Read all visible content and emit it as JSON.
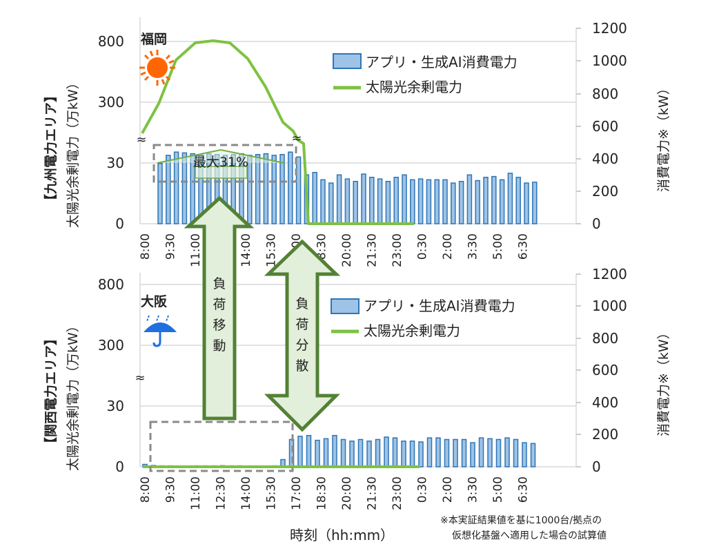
{
  "chart_data": [
    {
      "type": "bar+line",
      "title": "福岡",
      "region_label": "【九州電力エリア】",
      "ylabel_left": "太陽光余剰電力（万kW）",
      "ylabel_right": "消費電力※（kW）",
      "xlabel": "",
      "left_ticks": [
        "800",
        "300",
        "30",
        "0"
      ],
      "right_ticks": [
        "1200",
        "1000",
        "800",
        "600",
        "400",
        "200",
        "0"
      ],
      "x_tick_labels": [
        "8:00",
        "9:30",
        "11:00",
        "12:30",
        "14:00",
        "15:30",
        "17:00",
        "18:30",
        "20:00",
        "21:30",
        "23:00",
        "0:30",
        "2:00",
        "3:30",
        "5:00",
        "6:30"
      ],
      "legend": [
        "アプリ・生成AI消費電力",
        "太陽光余剰電力"
      ],
      "annotation": "最大31%",
      "weather": "sun",
      "series": [
        {
          "name": "アプリ・生成AI消費電力",
          "axis": "right",
          "type": "bar",
          "values": [
            370,
            420,
            440,
            435,
            430,
            425,
            430,
            425,
            420,
            425,
            430,
            420,
            425,
            430,
            420,
            425,
            440,
            410,
            300,
            315,
            270,
            250,
            300,
            275,
            260,
            305,
            285,
            275,
            260,
            285,
            300,
            270,
            275,
            270,
            270,
            270,
            250,
            260,
            300,
            265,
            285,
            290,
            270,
            310,
            285,
            250,
            255
          ]
        },
        {
          "name": "太陽光余剰電力",
          "axis": "left",
          "type": "line",
          "points_desc": "rises from break (~30+) at 8:00 to peak ~800 around 12:00, falls to break at ~16:00, then drops to 0 by ~17:00 and stays 0 until ~23:00"
        }
      ]
    },
    {
      "type": "bar+line",
      "title": "大阪",
      "region_label": "【関西電力エリア】",
      "ylabel_left": "太陽光余剰電力（万kW）",
      "ylabel_right": "消費電力※（kW）",
      "xlabel": "時刻（hh:mm）",
      "left_ticks": [
        "800",
        "300",
        "30",
        "0"
      ],
      "right_ticks": [
        "1200",
        "1000",
        "800",
        "600",
        "400",
        "200",
        "0"
      ],
      "x_tick_labels": [
        "8:00",
        "9:30",
        "11:00",
        "12:30",
        "14:00",
        "15:30",
        "17:00",
        "18:30",
        "20:00",
        "21:30",
        "23:00",
        "0:30",
        "2:00",
        "3:30",
        "5:00",
        "6:30"
      ],
      "legend": [
        "アプリ・生成AI消費電力",
        "太陽光余剰電力"
      ],
      "weather": "rain",
      "series": [
        {
          "name": "アプリ・生成AI消費電力",
          "axis": "right",
          "type": "bar",
          "values": [
            15,
            8,
            6,
            6,
            5,
            5,
            6,
            6,
            6,
            7,
            6,
            6,
            5,
            5,
            5,
            6,
            45,
            170,
            190,
            195,
            165,
            175,
            195,
            170,
            160,
            170,
            160,
            170,
            185,
            180,
            160,
            160,
            155,
            180,
            180,
            170,
            170,
            170,
            150,
            180,
            175,
            170,
            180,
            170,
            150,
            145
          ]
        },
        {
          "name": "太陽光余剰電力",
          "axis": "left",
          "type": "line",
          "points_desc": "≈0 throughout 8:00–23:00"
        }
      ]
    }
  ],
  "annotations": {
    "arrow_shift": "負荷移動",
    "arrow_spread": "負荷分散",
    "break_symbol": "≈"
  },
  "footnote": [
    "※本実証結果値を基に1000台/拠点の",
    "仮想化基盤へ適用した場合の試算値"
  ],
  "colors": {
    "bar_fill": "#9dc3e6",
    "bar_stroke": "#2e75b6",
    "line": "#7dc242",
    "arrow_fill": "#e2efda",
    "arrow_stroke": "#538135",
    "grid": "#d9d9d9",
    "sun": "#ff6600",
    "umbrella": "#1f6fe0"
  }
}
